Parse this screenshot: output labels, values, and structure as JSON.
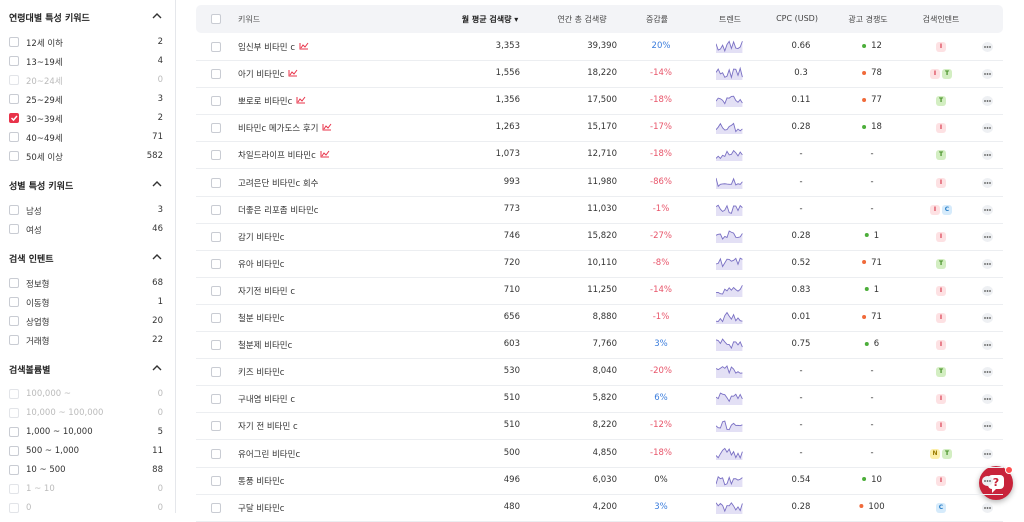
{
  "sidebar": {
    "sections": [
      {
        "title": "연령대별 특성 키워드",
        "items": [
          {
            "label": "12세 이하",
            "count": "2",
            "checked": false,
            "disabled": false
          },
          {
            "label": "13~19세",
            "count": "4",
            "checked": false,
            "disabled": false
          },
          {
            "label": "20~24세",
            "count": "0",
            "checked": false,
            "disabled": true
          },
          {
            "label": "25~29세",
            "count": "3",
            "checked": false,
            "disabled": false
          },
          {
            "label": "30~39세",
            "count": "2",
            "checked": true,
            "disabled": false
          },
          {
            "label": "40~49세",
            "count": "71",
            "checked": false,
            "disabled": false
          },
          {
            "label": "50세 이상",
            "count": "582",
            "checked": false,
            "disabled": false
          }
        ]
      },
      {
        "title": "성별 특성 키워드",
        "items": [
          {
            "label": "남성",
            "count": "3",
            "checked": false,
            "disabled": false
          },
          {
            "label": "여성",
            "count": "46",
            "checked": false,
            "disabled": false
          }
        ]
      },
      {
        "title": "검색 인텐트",
        "items": [
          {
            "label": "정보형",
            "count": "68",
            "checked": false,
            "disabled": false
          },
          {
            "label": "이동형",
            "count": "1",
            "checked": false,
            "disabled": false
          },
          {
            "label": "상업형",
            "count": "20",
            "checked": false,
            "disabled": false
          },
          {
            "label": "거래형",
            "count": "22",
            "checked": false,
            "disabled": false
          }
        ]
      },
      {
        "title": "검색볼륨별",
        "items": [
          {
            "label": "100,000 ~",
            "count": "0",
            "checked": false,
            "disabled": true
          },
          {
            "label": "10,000 ~ 100,000",
            "count": "0",
            "checked": false,
            "disabled": true
          },
          {
            "label": "1,000 ~ 10,000",
            "count": "5",
            "checked": false,
            "disabled": false
          },
          {
            "label": "500 ~ 1,000",
            "count": "11",
            "checked": false,
            "disabled": false
          },
          {
            "label": "10 ~ 500",
            "count": "88",
            "checked": false,
            "disabled": false
          },
          {
            "label": "1 ~ 10",
            "count": "0",
            "checked": false,
            "disabled": true
          },
          {
            "label": "0",
            "count": "0",
            "checked": false,
            "disabled": true
          }
        ]
      }
    ]
  },
  "table": {
    "header": [
      "키워드",
      "월 평균 검색량 ▾",
      "연간 총 검색량",
      "증감률",
      "트렌드",
      "CPC (USD)",
      "광고 경쟁도",
      "검색인텐트"
    ],
    "rows": [
      {
        "keyword": "임신부 비타민 c",
        "trending": true,
        "monthly": "3,353",
        "annual": "39,390",
        "change": "20%",
        "cpc": "0.66",
        "competition": "12",
        "intents": [
          "I"
        ]
      },
      {
        "keyword": "아기 비타민c",
        "trending": true,
        "monthly": "1,556",
        "annual": "18,220",
        "change": "-14%",
        "cpc": "0.3",
        "competition": "78",
        "intents": [
          "I",
          "T"
        ]
      },
      {
        "keyword": "뽀로로 비타민c",
        "trending": true,
        "monthly": "1,356",
        "annual": "17,500",
        "change": "-18%",
        "cpc": "0.11",
        "competition": "77",
        "intents": [
          "T"
        ]
      },
      {
        "keyword": "비타민c 메가도스 후기",
        "trending": true,
        "monthly": "1,263",
        "annual": "15,170",
        "change": "-17%",
        "cpc": "0.28",
        "competition": "18",
        "intents": [
          "I"
        ]
      },
      {
        "keyword": "차일드라이프 비타민c",
        "trending": true,
        "monthly": "1,073",
        "annual": "12,710",
        "change": "-18%",
        "cpc": "-",
        "competition": "-",
        "intents": [
          "T"
        ]
      },
      {
        "keyword": "고려은단 비타민c 회수",
        "trending": false,
        "monthly": "993",
        "annual": "11,980",
        "change": "-86%",
        "cpc": "-",
        "competition": "-",
        "intents": [
          "I"
        ]
      },
      {
        "keyword": "더좋은 리포좀 비타민c",
        "trending": false,
        "monthly": "773",
        "annual": "11,030",
        "change": "-1%",
        "cpc": "-",
        "competition": "-",
        "intents": [
          "I",
          "C"
        ]
      },
      {
        "keyword": "감기 비타민c",
        "trending": false,
        "monthly": "746",
        "annual": "15,820",
        "change": "-27%",
        "cpc": "0.28",
        "competition": "1",
        "intents": [
          "I"
        ]
      },
      {
        "keyword": "유아 비타민c",
        "trending": false,
        "monthly": "720",
        "annual": "10,110",
        "change": "-8%",
        "cpc": "0.52",
        "competition": "71",
        "intents": [
          "T"
        ]
      },
      {
        "keyword": "자기전 비타민 c",
        "trending": false,
        "monthly": "710",
        "annual": "11,250",
        "change": "-14%",
        "cpc": "0.83",
        "competition": "1",
        "intents": [
          "I"
        ]
      },
      {
        "keyword": "철분 비타민c",
        "trending": false,
        "monthly": "656",
        "annual": "8,880",
        "change": "-1%",
        "cpc": "0.01",
        "competition": "71",
        "intents": [
          "I"
        ]
      },
      {
        "keyword": "철분제 비타민c",
        "trending": false,
        "monthly": "603",
        "annual": "7,760",
        "change": "3%",
        "cpc": "0.75",
        "competition": "6",
        "intents": [
          "I"
        ]
      },
      {
        "keyword": "키즈 비타민c",
        "trending": false,
        "monthly": "530",
        "annual": "8,040",
        "change": "-20%",
        "cpc": "-",
        "competition": "-",
        "intents": [
          "T"
        ]
      },
      {
        "keyword": "구내염 비타민 c",
        "trending": false,
        "monthly": "510",
        "annual": "5,820",
        "change": "6%",
        "cpc": "-",
        "competition": "-",
        "intents": [
          "I"
        ]
      },
      {
        "keyword": "자기 전 비타민 c",
        "trending": false,
        "monthly": "510",
        "annual": "8,220",
        "change": "-12%",
        "cpc": "-",
        "competition": "-",
        "intents": [
          "I"
        ]
      },
      {
        "keyword": "유어그린 비타민c",
        "trending": false,
        "monthly": "500",
        "annual": "4,850",
        "change": "-18%",
        "cpc": "-",
        "competition": "-",
        "intents": [
          "N",
          "T"
        ]
      },
      {
        "keyword": "통풍 비타민c",
        "trending": false,
        "monthly": "496",
        "annual": "6,030",
        "change": "0%",
        "cpc": "0.54",
        "competition": "10",
        "intents": [
          "I"
        ]
      },
      {
        "keyword": "구달 비타민c",
        "trending": false,
        "monthly": "480",
        "annual": "4,200",
        "change": "3%",
        "cpc": "0.28",
        "competition": "100",
        "intents": [
          "C"
        ]
      }
    ]
  }
}
